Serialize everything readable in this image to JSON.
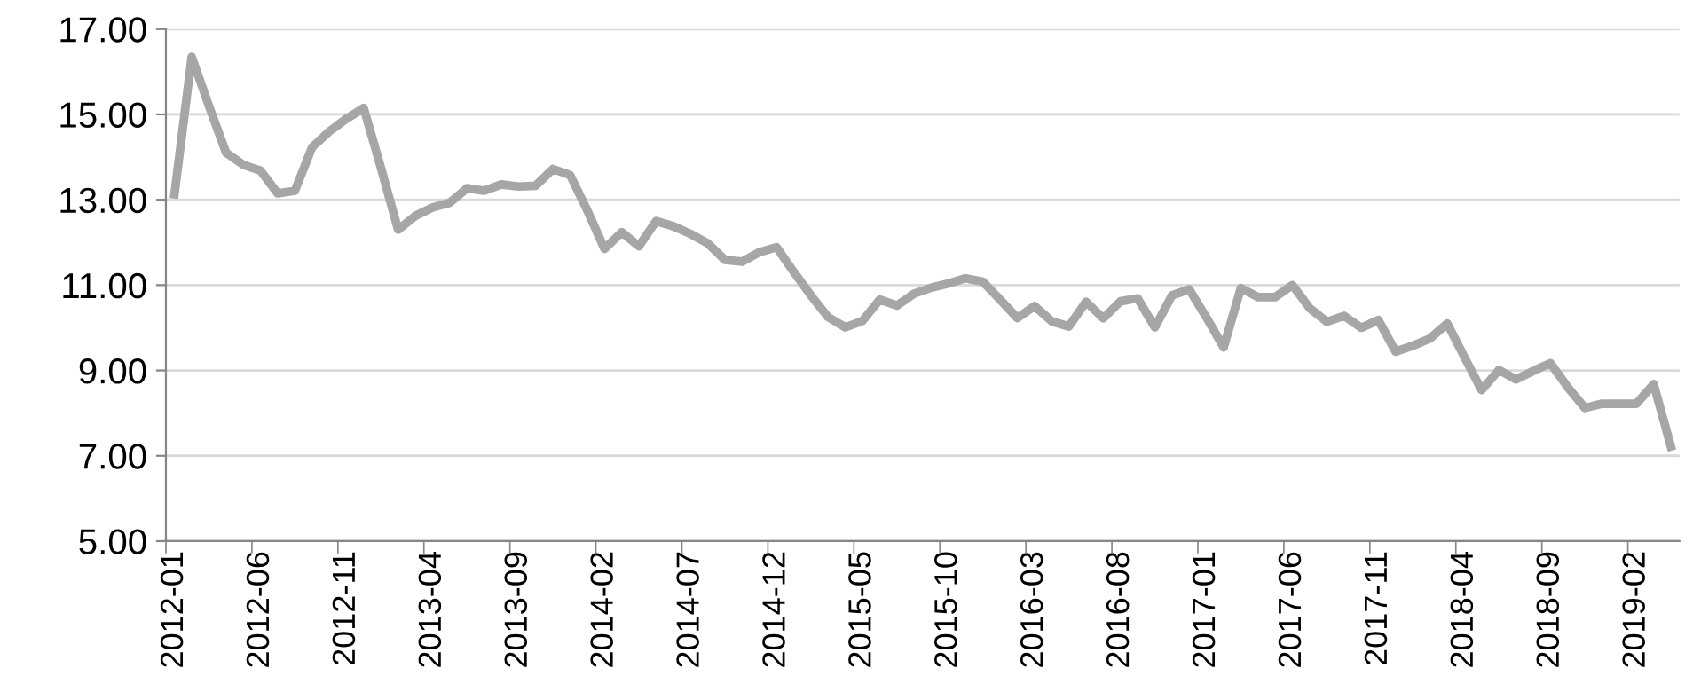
{
  "chart_data": {
    "type": "line",
    "categories": [
      "2012-01",
      null,
      null,
      null,
      null,
      "2012-06",
      null,
      null,
      null,
      null,
      "2012-11",
      null,
      null,
      null,
      null,
      "2013-04",
      null,
      null,
      null,
      null,
      "2013-09",
      null,
      null,
      null,
      null,
      "2014-02",
      null,
      null,
      null,
      null,
      "2014-07",
      null,
      null,
      null,
      null,
      "2014-12",
      null,
      null,
      null,
      null,
      "2015-05",
      null,
      null,
      null,
      null,
      "2015-10",
      null,
      null,
      null,
      null,
      "2016-03",
      null,
      null,
      null,
      null,
      "2016-08",
      null,
      null,
      null,
      null,
      "2017-01",
      null,
      null,
      null,
      null,
      "2017-06",
      null,
      null,
      null,
      null,
      "2017-11",
      null,
      null,
      null,
      null,
      "2018-04",
      null,
      null,
      null,
      null,
      "2018-09",
      null,
      null,
      null,
      null,
      "2019-02",
      null,
      null
    ],
    "series": [
      {
        "color": "#a6a6a6",
        "values": [
          13.13,
          16.35,
          15.2,
          14.1,
          13.82,
          13.68,
          13.15,
          13.21,
          14.23,
          14.6,
          14.9,
          15.15,
          13.75,
          12.3,
          12.62,
          12.82,
          12.93,
          13.27,
          13.21,
          13.36,
          13.31,
          13.33,
          13.72,
          13.58,
          12.75,
          11.85,
          12.24,
          11.91,
          12.5,
          12.38,
          12.2,
          11.98,
          11.59,
          11.55,
          11.77,
          11.89,
          11.31,
          10.76,
          10.25,
          10.01,
          10.16,
          10.66,
          10.52,
          10.8,
          10.94,
          11.04,
          11.16,
          11.08,
          10.66,
          10.23,
          10.51,
          10.15,
          10.03,
          10.61,
          10.22,
          10.62,
          10.69,
          10.01,
          10.76,
          10.9,
          10.24,
          9.54,
          10.93,
          10.72,
          10.72,
          11.0,
          10.46,
          10.14,
          10.28,
          10.0,
          10.18,
          9.44,
          9.58,
          9.75,
          10.1,
          9.31,
          8.54,
          9.01,
          8.79,
          8.99,
          9.17,
          8.61,
          8.12,
          8.22,
          8.22,
          8.22,
          8.68,
          7.22
        ]
      }
    ],
    "ylim": [
      5,
      17
    ],
    "yticks": [
      {
        "value": 5,
        "label": "5.00"
      },
      {
        "value": 7,
        "label": "7.00"
      },
      {
        "value": 9,
        "label": "9.00"
      },
      {
        "value": 11,
        "label": "11.00"
      },
      {
        "value": 13,
        "label": "13.00"
      },
      {
        "value": 15,
        "label": "15.00"
      },
      {
        "value": 17,
        "label": "17.00"
      }
    ],
    "grid": "y",
    "legend": false,
    "marker": "none",
    "line_style": "solid"
  }
}
